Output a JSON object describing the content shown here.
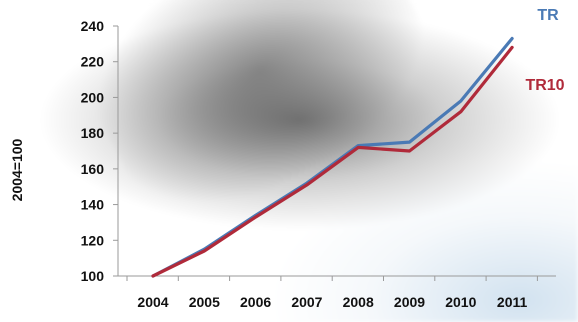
{
  "chart_data": {
    "type": "line",
    "title": "",
    "xlabel": "",
    "ylabel": "2004=100",
    "x": [
      "2004",
      "2005",
      "2006",
      "2007",
      "2008",
      "2009",
      "2010",
      "2011"
    ],
    "ylim": [
      100,
      240
    ],
    "yticks": [
      "100",
      "120",
      "140",
      "160",
      "180",
      "200",
      "220",
      "240"
    ],
    "grid": false,
    "series": [
      {
        "name": "TR",
        "color": "#4a7ab5",
        "values": [
          100,
          115,
          134,
          152,
          173,
          175,
          198,
          233
        ]
      },
      {
        "name": "TR10",
        "color": "#b02a3a",
        "values": [
          100,
          114,
          133,
          151,
          172,
          170,
          192,
          228
        ]
      }
    ]
  }
}
